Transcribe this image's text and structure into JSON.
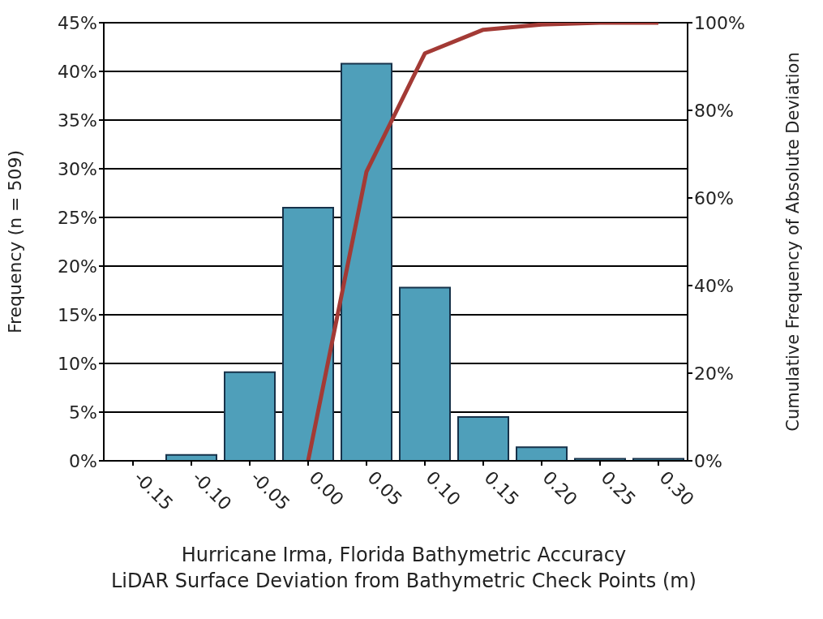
{
  "chart_data": {
    "type": "bar",
    "xlabel": "Hurricane Irma, Florida Bathymetric Accuracy\nLiDAR Surface Deviation from Bathymetric Check Points (m)",
    "ylabel": "Frequency (n = 509)",
    "y2label": "Cumulative Frequency of Absolute Deviation",
    "categories": [
      "-0.15",
      "-0.10",
      "-0.05",
      "0.00",
      "0.05",
      "0.10",
      "0.15",
      "0.20",
      "0.25",
      "0.30"
    ],
    "series": [
      {
        "color": "#4f9fba",
        "values": [
          0,
          0.6,
          9.1,
          26,
          40.8,
          17.8,
          4.5,
          1.4,
          0.2,
          0.2
        ]
      },
      {
        "type": "line",
        "axis": "y2",
        "color": "#a33a35",
        "values": [
          null,
          null,
          null,
          0,
          66,
          93,
          98.4,
          99.6,
          100,
          100
        ]
      }
    ],
    "ylim": [
      0,
      45
    ],
    "yticks": [
      {
        "value": 0,
        "label": "0%"
      },
      {
        "value": 5,
        "label": "5%"
      },
      {
        "value": 10,
        "label": "10%"
      },
      {
        "value": 15,
        "label": "15%"
      },
      {
        "value": 20,
        "label": "20%"
      },
      {
        "value": 25,
        "label": "25%"
      },
      {
        "value": 30,
        "label": "30%"
      },
      {
        "value": 35,
        "label": "35%"
      },
      {
        "value": 40,
        "label": "40%"
      },
      {
        "value": 45,
        "label": "45%"
      }
    ],
    "y2lim": [
      0,
      100
    ],
    "y2ticks": [
      {
        "value": 0,
        "label": "0%"
      },
      {
        "value": 20,
        "label": "20%"
      },
      {
        "value": 40,
        "label": "40%"
      },
      {
        "value": 60,
        "label": "60%"
      },
      {
        "value": 80,
        "label": "80%"
      },
      {
        "value": 100,
        "label": "100%"
      }
    ],
    "grid": "y",
    "legend": false,
    "marker": "none",
    "line_style": "solid"
  }
}
